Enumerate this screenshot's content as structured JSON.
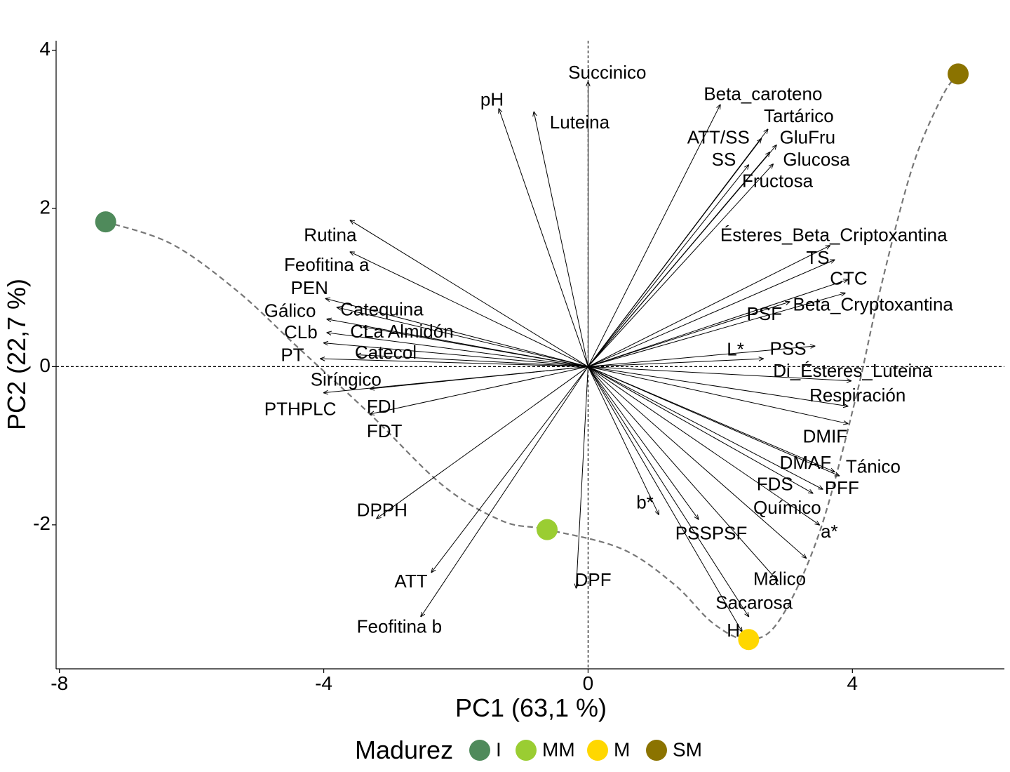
{
  "chart_data": {
    "type": "scatter",
    "subtype": "pca-biplot",
    "xlabel": "PC1 (63,1 %)",
    "ylabel": "PC2 (22,7 %)",
    "xlim": [
      -8.05,
      6.3
    ],
    "ylim": [
      -3.82,
      4.12
    ],
    "xticks": [
      -8,
      -4,
      0,
      4
    ],
    "yticks": [
      -2,
      0,
      2,
      4
    ],
    "tick_labels_x": [
      "-8",
      "-4",
      "0",
      "4"
    ],
    "tick_labels_y": [
      "-2",
      "0",
      "2",
      "4"
    ],
    "grid": false,
    "reference_lines": "dashed lines at x=0 and y=0",
    "legend": {
      "title": "Madurez",
      "position": "bottom",
      "entries": [
        {
          "label": "I",
          "color": "#4f8a5b"
        },
        {
          "label": "MM",
          "color": "#9acd32"
        },
        {
          "label": "M",
          "color": "#ffd700"
        },
        {
          "label": "SM",
          "color": "#8b7300"
        }
      ]
    },
    "scores": [
      {
        "group": "I",
        "x": -7.3,
        "y": 1.83,
        "color": "#4f8a5b"
      },
      {
        "group": "MM",
        "x": -0.62,
        "y": -2.06,
        "color": "#9acd32"
      },
      {
        "group": "M",
        "x": 2.43,
        "y": -3.45,
        "color": "#ffd700"
      },
      {
        "group": "SM",
        "x": 5.6,
        "y": 3.7,
        "color": "#8b7300"
      }
    ],
    "trajectory": {
      "style": "dashed",
      "color": "#777777",
      "points": [
        [
          -7.3,
          1.83
        ],
        [
          -6.3,
          1.55
        ],
        [
          -5.3,
          0.95
        ],
        [
          -4.4,
          0.25
        ],
        [
          -3.3,
          -0.6
        ],
        [
          -2.2,
          -1.5
        ],
        [
          -1.3,
          -1.95
        ],
        [
          -0.62,
          -2.06
        ],
        [
          0.5,
          -2.3
        ],
        [
          1.3,
          -2.75
        ],
        [
          1.9,
          -3.25
        ],
        [
          2.43,
          -3.45
        ],
        [
          2.9,
          -3.2
        ],
        [
          3.5,
          -2.1
        ],
        [
          4.05,
          -0.4
        ],
        [
          4.4,
          0.9
        ],
        [
          4.9,
          2.5
        ],
        [
          5.35,
          3.4
        ],
        [
          5.6,
          3.7
        ]
      ]
    },
    "loadings": [
      {
        "name": "Succinico",
        "x": 0.0,
        "y": 3.6,
        "lx": -0.3,
        "ly": 3.7
      },
      {
        "name": "pH",
        "x": -1.35,
        "y": 3.26,
        "lx": -1.63,
        "ly": 3.36
      },
      {
        "name": "Luteina",
        "x": -0.82,
        "y": 3.22,
        "lx": -0.58,
        "ly": 3.07
      },
      {
        "name": "Beta_caroteno",
        "x": 2.0,
        "y": 3.31,
        "lx": 1.75,
        "ly": 3.43
      },
      {
        "name": "Tartárico",
        "x": 2.72,
        "y": 3.0,
        "lx": 2.66,
        "ly": 3.15
      },
      {
        "name": "ATT/SS",
        "x": 2.62,
        "y": 2.88,
        "lx": 1.5,
        "ly": 2.88
      },
      {
        "name": "GluFru",
        "x": 2.85,
        "y": 2.8,
        "lx": 2.9,
        "ly": 2.88
      },
      {
        "name": "Glucosa",
        "x": 2.75,
        "y": 2.71,
        "lx": 2.95,
        "ly": 2.6
      },
      {
        "name": "SS",
        "x": 2.43,
        "y": 2.55,
        "lx": 1.87,
        "ly": 2.6
      },
      {
        "name": "Fructosa",
        "x": 2.8,
        "y": 2.56,
        "lx": 2.33,
        "ly": 2.33
      },
      {
        "name": "Ésteres_Beta_Criptoxantina",
        "x": 3.66,
        "y": 1.53,
        "lx": 2.0,
        "ly": 1.65
      },
      {
        "name": "TS",
        "x": 3.73,
        "y": 1.35,
        "lx": 3.3,
        "ly": 1.36
      },
      {
        "name": "CTC",
        "x": 3.93,
        "y": 1.1,
        "lx": 3.66,
        "ly": 1.1
      },
      {
        "name": "Beta_Cryptoxantina",
        "x": 3.89,
        "y": 0.93,
        "lx": 3.1,
        "ly": 0.77
      },
      {
        "name": "PSF",
        "x": 3.05,
        "y": 0.82,
        "lx": 2.4,
        "ly": 0.65
      },
      {
        "name": "L*",
        "x": 2.65,
        "y": 0.1,
        "lx": 2.1,
        "ly": 0.2
      },
      {
        "name": "PSS",
        "x": 3.43,
        "y": 0.26,
        "lx": 2.75,
        "ly": 0.21
      },
      {
        "name": "Di_Ésteres_Luteina",
        "x": 3.98,
        "y": -0.18,
        "lx": 2.8,
        "ly": -0.07
      },
      {
        "name": "Respiración",
        "x": 3.93,
        "y": -0.5,
        "lx": 3.35,
        "ly": -0.38
      },
      {
        "name": "DMIF",
        "x": 3.93,
        "y": -0.72,
        "lx": 3.25,
        "ly": -0.9
      },
      {
        "name": "DMAF",
        "x": 3.73,
        "y": -1.33,
        "lx": 2.9,
        "ly": -1.23
      },
      {
        "name": "Tánico",
        "x": 3.8,
        "y": -1.38,
        "lx": 3.9,
        "ly": -1.28
      },
      {
        "name": "FDS",
        "x": 3.4,
        "y": -1.6,
        "lx": 2.55,
        "ly": -1.5
      },
      {
        "name": "PFF",
        "x": 3.55,
        "y": -1.55,
        "lx": 3.58,
        "ly": -1.55
      },
      {
        "name": "Químico",
        "x": 3.5,
        "y": -2.0,
        "lx": 2.5,
        "ly": -1.8
      },
      {
        "name": "a*",
        "x": 3.3,
        "y": -2.42,
        "lx": 3.52,
        "ly": -2.1
      },
      {
        "name": "b*",
        "x": 1.07,
        "y": -1.87,
        "lx": 0.73,
        "ly": -1.73
      },
      {
        "name": "PSSPSF",
        "x": 1.67,
        "y": -1.93,
        "lx": 1.32,
        "ly": -2.12
      },
      {
        "name": "Málico",
        "x": 2.87,
        "y": -2.71,
        "lx": 2.5,
        "ly": -2.7
      },
      {
        "name": "Sacarosa",
        "x": 2.43,
        "y": -3.16,
        "lx": 1.93,
        "ly": -3.0
      },
      {
        "name": "H",
        "x": 2.33,
        "y": -3.35,
        "lx": 2.1,
        "ly": -3.35
      },
      {
        "name": "DPF",
        "x": -0.18,
        "y": -2.8,
        "lx": -0.2,
        "ly": -2.71
      },
      {
        "name": "Rutina",
        "x": -3.6,
        "y": 1.85,
        "lx": -4.3,
        "ly": 1.65
      },
      {
        "name": "Feofitina a",
        "x": -3.6,
        "y": 1.45,
        "lx": -4.6,
        "ly": 1.27
      },
      {
        "name": "PEN",
        "x": -3.97,
        "y": 0.86,
        "lx": -4.5,
        "ly": 0.98
      },
      {
        "name": "Gálico",
        "x": -3.95,
        "y": 0.6,
        "lx": -4.9,
        "ly": 0.69
      },
      {
        "name": "Catequina",
        "x": -3.8,
        "y": 0.75,
        "lx": -3.75,
        "ly": 0.71
      },
      {
        "name": "CLb",
        "x": -3.95,
        "y": 0.43,
        "lx": -4.6,
        "ly": 0.42
      },
      {
        "name": "CLa Almidón",
        "x": -3.4,
        "y": 0.5,
        "lx": -3.6,
        "ly": 0.43
      },
      {
        "name": "Catecol",
        "x": -3.5,
        "y": 0.15,
        "lx": -3.53,
        "ly": 0.16
      },
      {
        "name": "PT",
        "x": -4.05,
        "y": 0.1,
        "lx": -4.65,
        "ly": 0.13
      },
      {
        "name": "Siríngico",
        "x": -4.0,
        "y": 0.3,
        "lx": -4.2,
        "ly": -0.18
      },
      {
        "name": "PTHPLC",
        "x": -4.0,
        "y": -0.33,
        "lx": -4.9,
        "ly": -0.55
      },
      {
        "name": "FDI",
        "x": -3.3,
        "y": -0.28,
        "lx": -3.35,
        "ly": -0.52
      },
      {
        "name": "FDT",
        "x": -3.3,
        "y": -0.6,
        "lx": -3.35,
        "ly": -0.83
      },
      {
        "name": "DPPH",
        "x": -3.2,
        "y": -1.92,
        "lx": -3.5,
        "ly": -1.83
      },
      {
        "name": "ATT",
        "x": -2.37,
        "y": -2.6,
        "lx": -2.93,
        "ly": -2.73
      },
      {
        "name": "Feofitina b",
        "x": -2.53,
        "y": -3.16,
        "lx": -3.5,
        "ly": -3.3
      }
    ]
  }
}
